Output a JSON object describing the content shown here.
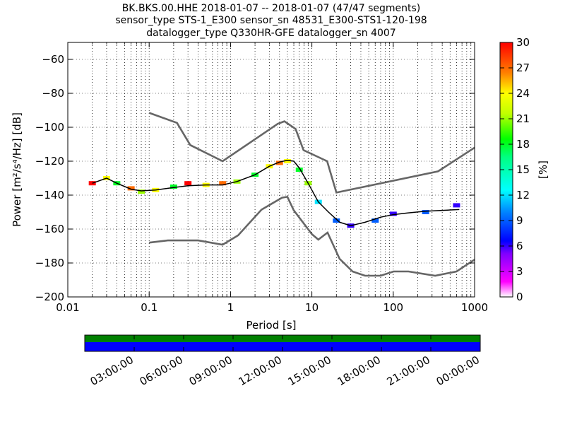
{
  "chart_data": {
    "type": "heatmap",
    "title_lines": [
      "BK.BKS.00.HHE   2018-01-07 -- 2018-01-07  (47/47 segments)",
      "sensor_type STS-1_E300 sensor_sn 48531_E300-STS1-120-198",
      "datalogger_type Q330HR-GFE datalogger_sn 4007"
    ],
    "xlabel": "Period [s]",
    "ylabel": "Power [m²/s⁴/Hz] [dB]",
    "x_scale": "log",
    "xlim": [
      0.01,
      1000
    ],
    "ylim": [
      -200,
      -50
    ],
    "x_ticks": [
      0.01,
      0.1,
      1,
      10,
      100,
      1000
    ],
    "x_tick_labels": [
      "0.01",
      "0.1",
      "1",
      "10",
      "100",
      "1000"
    ],
    "y_ticks": [
      -200,
      -180,
      -160,
      -140,
      -120,
      -100,
      -80,
      -60
    ],
    "y_tick_labels": [
      "−200",
      "−180",
      "−160",
      "−140",
      "−120",
      "−100",
      "−80",
      "−60"
    ],
    "grid": "dotted-vertical",
    "colorbar": {
      "label": "[%]",
      "min": 0,
      "max": 30,
      "ticks": [
        0,
        3,
        6,
        9,
        12,
        15,
        18,
        21,
        24,
        27,
        30
      ],
      "tick_labels": [
        "0",
        "3",
        "6",
        "9",
        "12",
        "15",
        "18",
        "21",
        "24",
        "27",
        "30"
      ]
    },
    "noise_models": [
      {
        "role": "upper",
        "x": [
          0.1,
          0.22,
          0.32,
          0.8,
          3.8,
          4.6,
          6.3,
          7.9,
          15.4,
          20,
          354.8,
          1000
        ],
        "y": [
          -91.5,
          -97.4,
          -110.5,
          -120,
          -98,
          -96.5,
          -101,
          -113.5,
          -120,
          -138.5,
          -126,
          -112
        ]
      },
      {
        "role": "lower",
        "x": [
          0.1,
          0.17,
          0.4,
          0.8,
          1.24,
          2.4,
          4.3,
          5,
          6,
          10,
          12,
          15.6,
          21.9,
          31.6,
          45,
          70,
          101,
          154,
          328,
          600,
          1000
        ],
        "y": [
          -168,
          -166.7,
          -166.7,
          -169.2,
          -163.7,
          -148.6,
          -141.5,
          -141,
          -149,
          -163,
          -166.2,
          -162.1,
          -177.5,
          -185,
          -187.5,
          -187.5,
          -185,
          -185,
          -187.5,
          -185,
          -178
        ]
      }
    ],
    "mean_curve": {
      "x": [
        0.02,
        0.03,
        0.04,
        0.06,
        0.08,
        0.12,
        0.2,
        0.3,
        0.5,
        0.8,
        1.2,
        2,
        3,
        4,
        5,
        6,
        7,
        9,
        12,
        16,
        22,
        30,
        45,
        70,
        100,
        150,
        250,
        400,
        650
      ],
      "y": [
        -133,
        -130,
        -133,
        -136.5,
        -137.5,
        -137,
        -135.5,
        -134.5,
        -134,
        -134,
        -132,
        -128,
        -123,
        -120.5,
        -119.5,
        -120,
        -124,
        -133,
        -144,
        -150,
        -156,
        -158,
        -156,
        -153,
        -151.5,
        -150.5,
        -149.5,
        -149,
        -148.5
      ]
    },
    "density": [
      {
        "x": 0.02,
        "y": -133,
        "pct": 30
      },
      {
        "x": 0.03,
        "y": -130,
        "pct": 24
      },
      {
        "x": 0.04,
        "y": -133,
        "pct": 18
      },
      {
        "x": 0.06,
        "y": -136,
        "pct": 27
      },
      {
        "x": 0.08,
        "y": -138,
        "pct": 21
      },
      {
        "x": 0.12,
        "y": -137,
        "pct": 24
      },
      {
        "x": 0.2,
        "y": -135,
        "pct": 18
      },
      {
        "x": 0.3,
        "y": -133,
        "pct": 30
      },
      {
        "x": 0.5,
        "y": -134,
        "pct": 24
      },
      {
        "x": 0.8,
        "y": -133,
        "pct": 27
      },
      {
        "x": 1.2,
        "y": -132,
        "pct": 21
      },
      {
        "x": 2,
        "y": -128,
        "pct": 18
      },
      {
        "x": 3,
        "y": -123,
        "pct": 24
      },
      {
        "x": 4,
        "y": -121,
        "pct": 27
      },
      {
        "x": 5,
        "y": -120,
        "pct": 24
      },
      {
        "x": 7,
        "y": -125,
        "pct": 18
      },
      {
        "x": 9,
        "y": -133,
        "pct": 21
      },
      {
        "x": 12,
        "y": -144,
        "pct": 12
      },
      {
        "x": 20,
        "y": -155,
        "pct": 9
      },
      {
        "x": 30,
        "y": -158,
        "pct": 6
      },
      {
        "x": 60,
        "y": -155,
        "pct": 9
      },
      {
        "x": 100,
        "y": -151,
        "pct": 6
      },
      {
        "x": 250,
        "y": -150,
        "pct": 9
      },
      {
        "x": 600,
        "y": -146,
        "pct": 6
      }
    ]
  },
  "timebar": {
    "labels": [
      "03:00:00",
      "06:00:00",
      "09:00:00",
      "12:00:00",
      "15:00:00",
      "18:00:00",
      "21:00:00",
      "00:00:00"
    ]
  },
  "colors": {
    "noise_model": "#666666",
    "mean_curve": "#000000",
    "timebar_top": "#008000",
    "timebar_bottom": "#0000ff"
  }
}
